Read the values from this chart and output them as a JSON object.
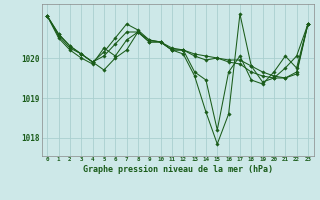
{
  "xlabel": "Graphe pression niveau de la mer (hPa)",
  "x_ticks": [
    0,
    1,
    2,
    3,
    4,
    5,
    6,
    7,
    8,
    9,
    10,
    11,
    12,
    13,
    14,
    15,
    16,
    17,
    18,
    19,
    20,
    21,
    22,
    23
  ],
  "ylim": [
    1017.55,
    1021.35
  ],
  "yticks": [
    1018,
    1019,
    1020
  ],
  "bg_color": "#cde8e8",
  "grid_color": "#aacfcf",
  "line_color": "#1a5c1a",
  "series": [
    [
      1021.05,
      1020.55,
      1020.25,
      1020.1,
      1019.9,
      1020.15,
      1020.5,
      1020.85,
      1020.7,
      1020.45,
      1020.4,
      1020.25,
      1020.2,
      1020.1,
      1020.05,
      1020.0,
      1019.95,
      1019.95,
      1019.8,
      1019.65,
      1019.55,
      1019.5,
      1019.65,
      1020.85
    ],
    [
      1021.05,
      1020.5,
      1020.2,
      1020.0,
      1019.85,
      1020.25,
      1020.05,
      1020.45,
      1020.65,
      1020.45,
      1020.4,
      1020.2,
      1020.2,
      1020.05,
      1019.95,
      1020.0,
      1019.9,
      1019.85,
      1019.65,
      1019.55,
      1019.5,
      1019.5,
      1019.6,
      1020.85
    ],
    [
      1021.05,
      1020.6,
      1020.3,
      1020.1,
      1019.9,
      1019.7,
      1020.0,
      1020.2,
      1020.65,
      1020.4,
      1020.4,
      1020.2,
      1020.2,
      1019.65,
      1019.45,
      1018.2,
      1019.65,
      1020.05,
      1019.45,
      1019.35,
      1019.65,
      1020.05,
      1019.75,
      1020.85
    ],
    [
      1021.05,
      1020.6,
      1020.3,
      1020.1,
      1019.9,
      1020.05,
      1020.35,
      1020.65,
      1020.65,
      1020.4,
      1020.4,
      1020.2,
      1020.1,
      1019.55,
      1018.65,
      1017.85,
      1018.6,
      1021.1,
      1019.8,
      1019.4,
      1019.5,
      1019.75,
      1020.05,
      1020.85
    ]
  ]
}
